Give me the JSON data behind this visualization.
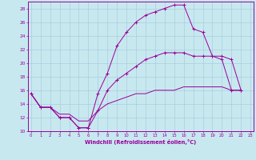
{
  "xlabel": "Windchill (Refroidissement éolien,°C)",
  "background_color": "#c8e8f0",
  "grid_color": "#a0c8d8",
  "line_color": "#990099",
  "xlim": [
    -0.3,
    23.3
  ],
  "ylim": [
    10,
    29
  ],
  "xticks": [
    0,
    1,
    2,
    3,
    4,
    5,
    6,
    7,
    8,
    9,
    10,
    11,
    12,
    13,
    14,
    15,
    16,
    17,
    18,
    19,
    20,
    21,
    22,
    23
  ],
  "yticks": [
    10,
    12,
    14,
    16,
    18,
    20,
    22,
    24,
    26,
    28
  ],
  "curve1_x": [
    0,
    1,
    2,
    3,
    4,
    5,
    6,
    7,
    8,
    9,
    10,
    11,
    12,
    13,
    14,
    15,
    16,
    17,
    18,
    19,
    20,
    21,
    22
  ],
  "curve1_y": [
    15.5,
    13.5,
    13.5,
    12.0,
    12.0,
    10.5,
    10.5,
    15.5,
    18.5,
    22.5,
    24.5,
    26.0,
    27.0,
    27.5,
    28.0,
    28.5,
    28.5,
    25.0,
    24.5,
    21.0,
    20.5,
    16.0,
    16.0
  ],
  "curve2_x": [
    0,
    1,
    2,
    3,
    4,
    5,
    6,
    7,
    8,
    9,
    10,
    11,
    12,
    13,
    14,
    15,
    16,
    17,
    18,
    19,
    20,
    21,
    22
  ],
  "curve2_y": [
    15.5,
    13.5,
    13.5,
    12.0,
    12.0,
    10.5,
    10.5,
    13.0,
    16.0,
    17.5,
    18.5,
    19.5,
    20.5,
    21.0,
    21.5,
    21.5,
    21.5,
    21.0,
    21.0,
    21.0,
    21.0,
    20.5,
    16.0
  ],
  "curve3_x": [
    0,
    1,
    2,
    3,
    4,
    5,
    6,
    7,
    8,
    9,
    10,
    11,
    12,
    13,
    14,
    15,
    16,
    17,
    18,
    19,
    20,
    21,
    22
  ],
  "curve3_y": [
    15.5,
    13.5,
    13.5,
    12.5,
    12.5,
    11.5,
    11.5,
    13.0,
    14.0,
    14.5,
    15.0,
    15.5,
    15.5,
    16.0,
    16.0,
    16.0,
    16.5,
    16.5,
    16.5,
    16.5,
    16.5,
    16.0,
    16.0
  ]
}
